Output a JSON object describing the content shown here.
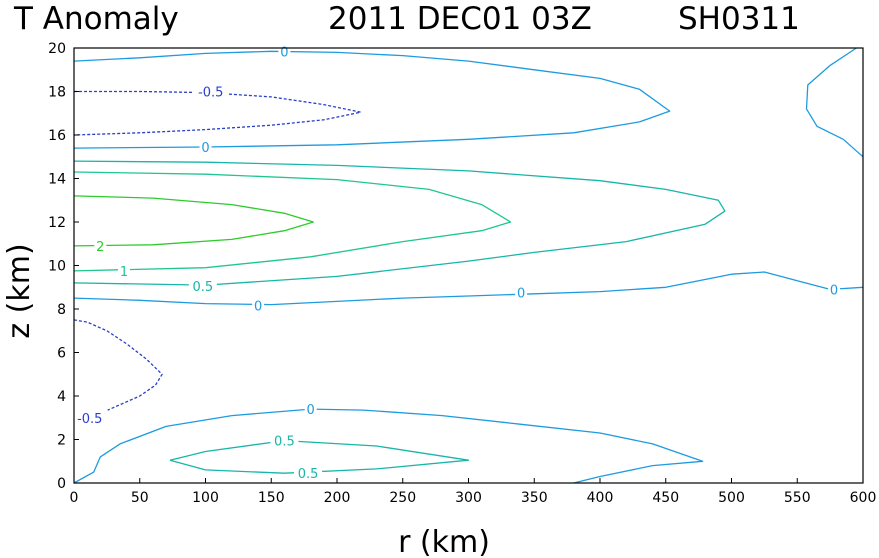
{
  "chart_data": {
    "type": "contour",
    "title": {
      "left": "T Anomaly",
      "middle": "2011 DEC01 03Z",
      "right": "SH0311"
    },
    "xlabel": "r (km)",
    "ylabel": "z (km)",
    "xlim": [
      0,
      600
    ],
    "ylim": [
      0,
      20
    ],
    "xticks": [
      0,
      50,
      100,
      150,
      200,
      250,
      300,
      350,
      400,
      450,
      500,
      550,
      600
    ],
    "yticks": [
      0,
      2,
      4,
      6,
      8,
      10,
      12,
      14,
      16,
      18,
      20
    ],
    "grid": false,
    "contours": [
      {
        "level": -0.5,
        "color": "#2a3fc9",
        "dashed": true,
        "labels": [
          {
            "text": "-0.5",
            "x": 104,
            "y": 18.0
          }
        ],
        "points": [
          [
            0,
            18
          ],
          [
            50,
            18
          ],
          [
            100,
            17.95
          ],
          [
            150,
            17.75
          ],
          [
            190,
            17.4
          ],
          [
            218,
            17.05
          ],
          [
            190,
            16.7
          ],
          [
            150,
            16.45
          ],
          [
            100,
            16.25
          ],
          [
            50,
            16.1
          ],
          [
            0,
            16.0
          ]
        ]
      },
      {
        "level": -0.5,
        "color": "#2a3fc9",
        "dashed": true,
        "labels": [
          {
            "text": "-0.5",
            "x": 12,
            "y": 3.0
          }
        ],
        "points": [
          [
            0,
            7.5
          ],
          [
            10,
            7.4
          ],
          [
            25,
            7.0
          ],
          [
            40,
            6.4
          ],
          [
            55,
            5.7
          ],
          [
            67,
            5.0
          ],
          [
            62,
            4.5
          ],
          [
            50,
            4.0
          ],
          [
            35,
            3.6
          ],
          [
            20,
            3.2
          ],
          [
            8,
            2.9
          ],
          [
            0,
            2.7
          ]
        ]
      },
      {
        "level": 0,
        "color": "#1e9be0",
        "dashed": false,
        "labels": [
          {
            "text": "0",
            "x": 160,
            "y": 19.85
          }
        ],
        "points": [
          [
            0,
            19.4
          ],
          [
            50,
            19.55
          ],
          [
            100,
            19.75
          ],
          [
            150,
            19.85
          ],
          [
            200,
            19.8
          ],
          [
            250,
            19.65
          ],
          [
            300,
            19.4
          ],
          [
            350,
            19.0
          ],
          [
            400,
            18.6
          ],
          [
            430,
            18.1
          ],
          [
            453,
            17.1
          ],
          [
            430,
            16.6
          ],
          [
            380,
            16.1
          ],
          [
            300,
            15.8
          ],
          [
            200,
            15.55
          ],
          [
            100,
            15.45
          ],
          [
            0,
            15.4
          ]
        ]
      },
      {
        "level": 0,
        "color": "#1e9be0",
        "dashed": false,
        "labels": [
          {
            "text": "0",
            "x": 100,
            "y": 15.45
          }
        ],
        "points": []
      },
      {
        "level": 0,
        "color": "#1e9be0",
        "dashed": false,
        "labels": [],
        "points": [
          [
            595,
            20.0
          ],
          [
            575,
            19.2
          ],
          [
            558,
            18.3
          ],
          [
            557,
            17.2
          ],
          [
            565,
            16.4
          ],
          [
            585,
            15.8
          ],
          [
            600,
            15.0
          ]
        ]
      },
      {
        "level": 0,
        "color": "#1e9be0",
        "dashed": false,
        "labels": [
          {
            "text": "0",
            "x": 140,
            "y": 8.15
          },
          {
            "text": "0",
            "x": 340,
            "y": 8.75
          },
          {
            "text": "0",
            "x": 578,
            "y": 8.9
          }
        ],
        "points": [
          [
            0,
            8.5
          ],
          [
            50,
            8.4
          ],
          [
            100,
            8.25
          ],
          [
            150,
            8.2
          ],
          [
            200,
            8.35
          ],
          [
            250,
            8.5
          ],
          [
            300,
            8.6
          ],
          [
            350,
            8.7
          ],
          [
            400,
            8.8
          ],
          [
            450,
            9.0
          ],
          [
            500,
            9.6
          ],
          [
            525,
            9.7
          ],
          [
            550,
            9.3
          ],
          [
            575,
            8.9
          ],
          [
            600,
            9.0
          ]
        ]
      },
      {
        "level": 0,
        "color": "#1e9be0",
        "dashed": false,
        "labels": [
          {
            "text": "0",
            "x": 180,
            "y": 3.4
          }
        ],
        "points": [
          [
            0,
            0.0
          ],
          [
            15,
            0.5
          ],
          [
            20,
            1.2
          ],
          [
            35,
            1.8
          ],
          [
            70,
            2.6
          ],
          [
            120,
            3.1
          ],
          [
            180,
            3.4
          ],
          [
            220,
            3.35
          ],
          [
            280,
            3.1
          ],
          [
            340,
            2.7
          ],
          [
            400,
            2.3
          ],
          [
            440,
            1.8
          ],
          [
            478,
            1.0
          ],
          [
            440,
            0.8
          ],
          [
            400,
            0.3
          ],
          [
            380,
            0.0
          ]
        ]
      },
      {
        "level": 0.5,
        "color": "#17b6a8",
        "dashed": false,
        "labels": [
          {
            "text": "0.5",
            "x": 98,
            "y": 9.05
          }
        ],
        "points": [
          [
            0,
            14.8
          ],
          [
            100,
            14.75
          ],
          [
            200,
            14.6
          ],
          [
            300,
            14.35
          ],
          [
            400,
            13.9
          ],
          [
            450,
            13.5
          ],
          [
            490,
            13.0
          ],
          [
            495,
            12.5
          ],
          [
            480,
            11.9
          ],
          [
            420,
            11.1
          ],
          [
            350,
            10.6
          ],
          [
            300,
            10.2
          ],
          [
            200,
            9.5
          ],
          [
            100,
            9.1
          ],
          [
            0,
            9.2
          ]
        ]
      },
      {
        "level": 0.5,
        "color": "#17b6a8",
        "dashed": false,
        "labels": [
          {
            "text": "0.5",
            "x": 160,
            "y": 1.95
          },
          {
            "text": "0.5",
            "x": 178,
            "y": 0.45
          }
        ],
        "points": [
          [
            73,
            1.05
          ],
          [
            100,
            1.45
          ],
          [
            160,
            1.95
          ],
          [
            230,
            1.7
          ],
          [
            300,
            1.05
          ],
          [
            230,
            0.65
          ],
          [
            160,
            0.45
          ],
          [
            100,
            0.6
          ],
          [
            73,
            1.05
          ]
        ]
      },
      {
        "level": 1,
        "color": "#1fc691",
        "dashed": false,
        "labels": [
          {
            "text": "1",
            "x": 38,
            "y": 9.75
          }
        ],
        "points": [
          [
            0,
            14.3
          ],
          [
            100,
            14.2
          ],
          [
            200,
            13.95
          ],
          [
            270,
            13.5
          ],
          [
            310,
            12.8
          ],
          [
            332,
            12.0
          ],
          [
            310,
            11.6
          ],
          [
            250,
            11.1
          ],
          [
            180,
            10.4
          ],
          [
            100,
            9.9
          ],
          [
            0,
            9.75
          ]
        ]
      },
      {
        "level": 2,
        "color": "#2ccc2c",
        "dashed": false,
        "labels": [
          {
            "text": "2",
            "x": 20,
            "y": 10.9
          }
        ],
        "points": [
          [
            0,
            13.2
          ],
          [
            60,
            13.1
          ],
          [
            120,
            12.8
          ],
          [
            160,
            12.4
          ],
          [
            182,
            12.0
          ],
          [
            160,
            11.6
          ],
          [
            120,
            11.2
          ],
          [
            60,
            10.95
          ],
          [
            0,
            10.9
          ]
        ]
      }
    ]
  }
}
